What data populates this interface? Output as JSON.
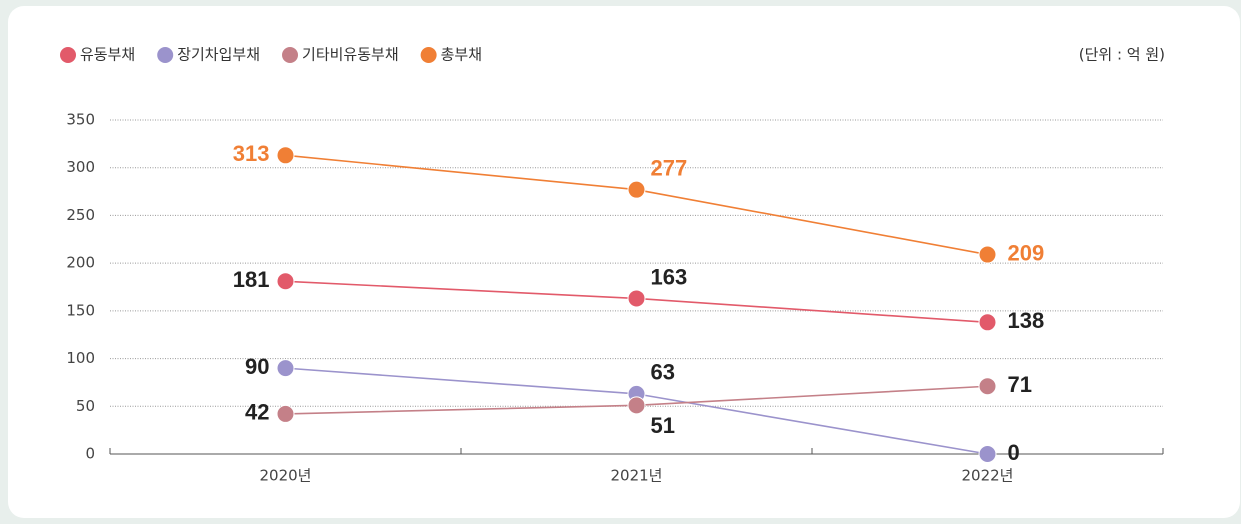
{
  "chart_data": {
    "type": "line",
    "unit": "(단위 : 억 원)",
    "categories": [
      "2020년",
      "2021년",
      "2022년"
    ],
    "series": [
      {
        "name": "유동부채",
        "color": "#e25a6a",
        "values": [
          181,
          163,
          138
        ]
      },
      {
        "name": "장기차입부채",
        "color": "#9b93cc",
        "values": [
          90,
          63,
          0
        ]
      },
      {
        "name": "기타비유동부채",
        "color": "#c48088",
        "values": [
          42,
          51,
          71
        ]
      },
      {
        "name": "총부채",
        "color": "#f07f35",
        "values": [
          313,
          277,
          209
        ]
      }
    ],
    "ylim": [
      0,
      350
    ],
    "yticks": [
      0,
      50,
      100,
      150,
      200,
      250,
      300,
      350
    ],
    "grid": true
  }
}
